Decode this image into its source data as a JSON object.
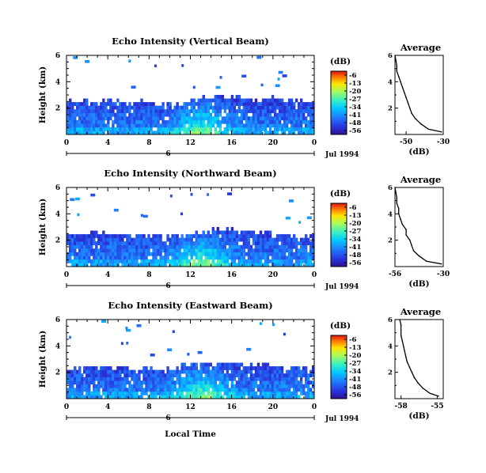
{
  "chart_data": [
    {
      "type": "heatmap",
      "title": "Echo Intensity (Vertical Beam)",
      "ylabel": "Height (km)",
      "y_ticks": [
        "2",
        "4",
        "6"
      ],
      "x_ticks": [
        "0",
        "4",
        "8",
        "12",
        "16",
        "20",
        "0"
      ],
      "x_range": [
        0,
        24
      ],
      "y_range": [
        0,
        6
      ],
      "date_day": "6",
      "date_label": "Jul 1994",
      "colorbar": {
        "label": "(dB)",
        "ticks": [
          "-6",
          "-13",
          "-20",
          "-27",
          "-34",
          "-41",
          "-48",
          "-56"
        ],
        "range": [
          -56,
          -6
        ]
      },
      "echo_top_km": [
        2.5,
        2.6,
        2.5,
        2.6,
        2.5,
        2.4,
        2.4,
        2.5,
        2.4,
        2.5,
        2.4,
        2.4,
        2.7,
        2.8,
        2.9,
        2.9,
        2.8,
        2.8,
        2.7,
        2.8,
        2.6,
        2.5,
        2.5,
        2.5
      ],
      "average_profile": {
        "title": "Average",
        "xlabel": "(dB)",
        "x_ticks": [
          "-50",
          "-30"
        ],
        "x_range": [
          -56,
          -30
        ],
        "y_ticks": [
          "2",
          "4",
          "6"
        ],
        "y_range": [
          0,
          6
        ],
        "height_km": [
          0.2,
          0.4,
          0.8,
          1.2,
          1.6,
          2.0,
          2.4,
          2.8,
          3.2,
          3.6,
          4.0,
          4.4,
          4.8,
          5.2,
          5.6,
          6.0
        ],
        "db": [
          -31,
          -38,
          -42,
          -45,
          -47,
          -48,
          -49,
          -50,
          -51,
          -52,
          -53,
          -54,
          -55,
          -55,
          -55.5,
          -56
        ]
      }
    },
    {
      "type": "heatmap",
      "title": "Echo Intensity (Northward Beam)",
      "ylabel": "Height (km)",
      "y_ticks": [
        "2",
        "4",
        "6"
      ],
      "x_ticks": [
        "0",
        "4",
        "8",
        "12",
        "16",
        "20",
        "0"
      ],
      "x_range": [
        0,
        24
      ],
      "y_range": [
        0,
        6
      ],
      "date_day": "6",
      "date_label": "Jul 1994",
      "colorbar": {
        "label": "(dB)",
        "ticks": [
          "-6",
          "-13",
          "-20",
          "-27",
          "-34",
          "-41",
          "-48",
          "-56"
        ],
        "range": [
          -56,
          -6
        ]
      },
      "echo_top_km": [
        2.5,
        2.4,
        2.5,
        2.5,
        2.5,
        2.4,
        2.4,
        2.4,
        2.3,
        2.4,
        2.4,
        2.4,
        2.6,
        2.7,
        2.8,
        2.8,
        2.7,
        2.7,
        2.6,
        2.6,
        2.5,
        2.5,
        2.4,
        2.4
      ],
      "average_profile": {
        "title": "Average",
        "xlabel": "(dB)",
        "x_ticks": [
          "-56",
          "-30"
        ],
        "x_range": [
          -56,
          -30
        ],
        "y_ticks": [
          "2",
          "4",
          "6"
        ],
        "y_range": [
          0,
          6
        ],
        "height_km": [
          0.2,
          0.4,
          0.8,
          1.2,
          1.6,
          2.0,
          2.4,
          2.8,
          3.2,
          3.6,
          4.0,
          4.4,
          4.8,
          5.2,
          5.6,
          6.0
        ],
        "db": [
          -31,
          -39,
          -43,
          -46,
          -47,
          -48,
          -50,
          -50,
          -52,
          -53,
          -54,
          -54,
          -55,
          -55,
          -55.5,
          -56
        ]
      }
    },
    {
      "type": "heatmap",
      "title": "Echo Intensity (Eastward Beam)",
      "ylabel": "Height (km)",
      "y_ticks": [
        "2",
        "4",
        "6"
      ],
      "x_ticks": [
        "0",
        "4",
        "8",
        "12",
        "16",
        "20",
        "0"
      ],
      "x_range": [
        0,
        24
      ],
      "y_range": [
        0,
        6
      ],
      "date_day": "6",
      "date_label": "Jul 1994",
      "xlabel": "Local Time",
      "colorbar": {
        "label": "(dB)",
        "ticks": [
          "-6",
          "-13",
          "-20",
          "-27",
          "-34",
          "-41",
          "-48",
          "-56"
        ],
        "range": [
          -56,
          -6
        ]
      },
      "echo_top_km": [
        2.4,
        2.4,
        2.5,
        2.4,
        2.4,
        2.4,
        2.3,
        2.3,
        2.3,
        2.3,
        2.4,
        2.5,
        2.6,
        2.7,
        2.7,
        2.7,
        2.7,
        2.6,
        2.6,
        2.6,
        2.5,
        2.4,
        2.4,
        2.4
      ],
      "average_profile": {
        "title": "Average",
        "xlabel": "(dB)",
        "x_ticks": [
          "-58",
          "-55"
        ],
        "x_range": [
          -58.5,
          -54.5
        ],
        "y_ticks": [
          "2",
          "4",
          "6"
        ],
        "y_range": [
          0,
          6
        ],
        "height_km": [
          0.2,
          0.4,
          0.8,
          1.2,
          1.6,
          2.0,
          2.4,
          2.8,
          3.2,
          3.6,
          4.0,
          4.4,
          4.8,
          5.2,
          5.6,
          6.0
        ],
        "db": [
          -54.9,
          -55.6,
          -56.2,
          -56.6,
          -56.9,
          -57.1,
          -57.3,
          -57.5,
          -57.6,
          -57.7,
          -57.8,
          -57.9,
          -58.0,
          -58.0,
          -58.0,
          -58.1
        ]
      }
    }
  ]
}
